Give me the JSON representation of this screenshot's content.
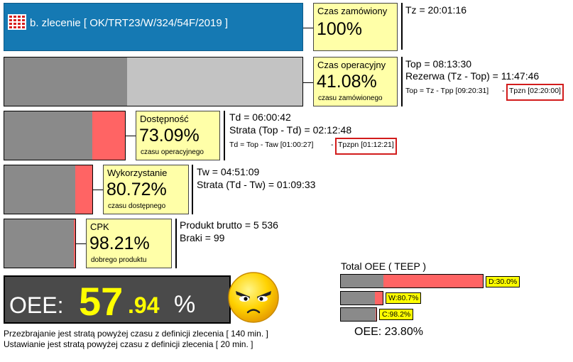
{
  "header": {
    "title": "b. zlecenie [ OK/TRT23/W/324/54F/2019 ]",
    "icon": "calendar-grid-icon",
    "color": "#1579b3"
  },
  "rows": [
    {
      "label": "Czas zamówiony",
      "value": "100%",
      "sub": "",
      "lines": [
        "Tz = 20:01:16"
      ],
      "formula": "",
      "tag": ""
    },
    {
      "label": "Czas operacyjny",
      "value": "41.08%",
      "sub": "czasu zamówionego",
      "lines": [
        "Top = 08:13:30",
        "Rezerwa (Tz - Top) = 11:47:46"
      ],
      "formula": "Top = Tz - Tpp [09:20:31]",
      "tag": "Tpzn [02:20:00]"
    },
    {
      "label": "Dostępność",
      "value": "73.09%",
      "sub": "czasu operacyjnego",
      "lines": [
        "Td = 06:00:42",
        "Strata (Top - Td) = 02:12:48"
      ],
      "formula": "Td = Top - Taw [01:00:27]",
      "tag": "Tpzpn [01:12:21]"
    },
    {
      "label": "Wykorzystanie",
      "value": "80.72%",
      "sub": "czasu dostępnego",
      "lines": [
        "Tw = 04:51:09",
        "Strata (Td - Tw) = 01:09:33"
      ]
    },
    {
      "label": "CPK",
      "value": "98.21%",
      "sub": "dobrego produktu",
      "lines": [
        "Produkt brutto = 5 536",
        "Braki = 99"
      ]
    }
  ],
  "oee": {
    "label": "OEE:",
    "int": "57",
    "dec": ".94",
    "pct": "%",
    "face": "angry-face-icon"
  },
  "notes": [
    "Przezbrajanie jest stratą powyżej czasu z definicji zlecenia [ 140 min. ]",
    "Ustawianie jest stratą powyżej czasu z definicji zlecenia [ 20 min. ]"
  ],
  "teep": {
    "title": "Total OEE ( TEEP )",
    "tags": [
      "D:30.0%",
      "W:80.7%",
      "C:98.2%"
    ],
    "result": "OEE: 23.80%"
  },
  "colors": {
    "bar_dark": "#8a8a8a",
    "bar_light": "#c3c3c3",
    "loss": "#ff6464",
    "yellow_box": "#ffffa8",
    "oee_bg": "#4a4a4a",
    "oee_value": "#ffff00"
  }
}
